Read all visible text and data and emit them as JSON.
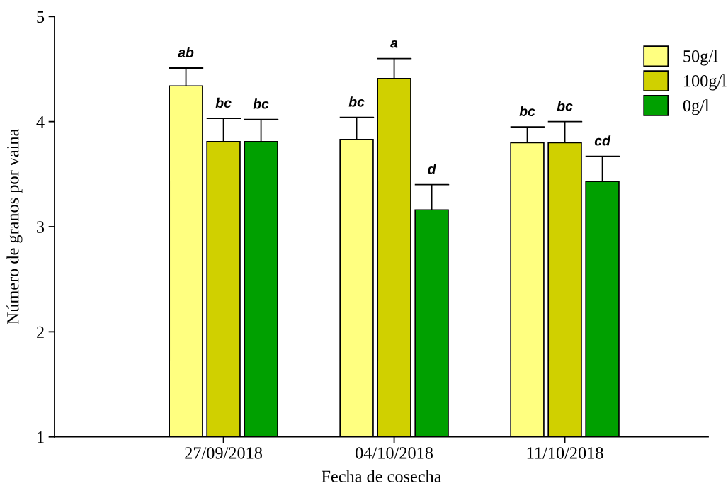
{
  "chart_data": {
    "type": "bar",
    "xlabel": "Fecha de cosecha",
    "ylabel": "Número de granos por vaina",
    "categories": [
      "27/09/2018",
      "04/10/2018",
      "11/10/2018"
    ],
    "series": [
      {
        "name": "50g/l",
        "color": "#ffff80",
        "values": [
          4.34,
          3.83,
          3.8
        ],
        "errors": [
          [
            4.34,
            4.51
          ],
          [
            3.83,
            4.04
          ],
          [
            3.8,
            3.95
          ]
        ],
        "value_labels": [
          "ab",
          "bc",
          "bc"
        ]
      },
      {
        "name": "100g/l",
        "color": "#d0d000",
        "values": [
          3.81,
          4.41,
          3.8
        ],
        "errors": [
          [
            3.81,
            4.03
          ],
          [
            4.41,
            4.6
          ],
          [
            3.8,
            4.0
          ]
        ],
        "value_labels": [
          "bc",
          "a",
          "bc"
        ]
      },
      {
        "name": "0g/l",
        "color": "#00a000",
        "values": [
          3.81,
          3.16,
          3.43
        ],
        "errors": [
          [
            3.81,
            4.02
          ],
          [
            3.16,
            3.4
          ],
          [
            3.43,
            3.67
          ]
        ],
        "value_labels": [
          "bc",
          "d",
          "cd"
        ]
      }
    ],
    "ylim": [
      1,
      5
    ],
    "yticks": [
      1,
      2,
      3,
      4,
      5
    ],
    "grid": false,
    "legend": "top right"
  }
}
